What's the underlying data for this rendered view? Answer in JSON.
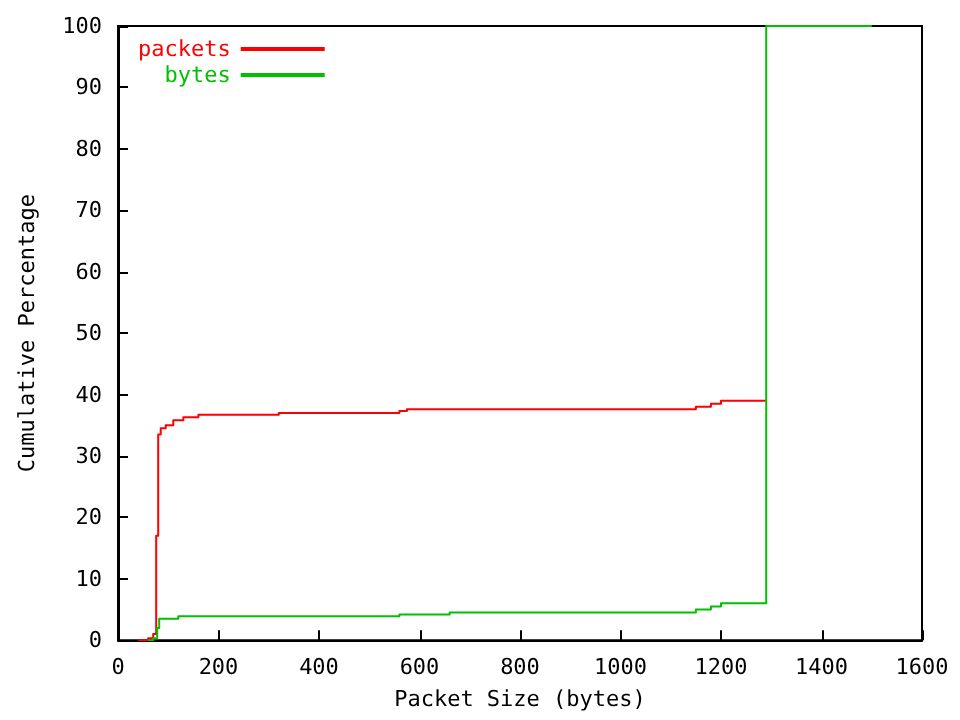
{
  "chart_data": {
    "type": "step",
    "xlabel": "Packet Size (bytes)",
    "ylabel": "Cumulative Percentage",
    "xlim": [
      0,
      1600
    ],
    "xticks": [
      0,
      200,
      400,
      600,
      800,
      1000,
      1200,
      1400,
      1600
    ],
    "ylim": [
      0,
      100
    ],
    "yticks": [
      0,
      10,
      20,
      30,
      40,
      50,
      60,
      70,
      80,
      90,
      100
    ],
    "grid": false,
    "legend": "top left",
    "marker": "none",
    "line_style": "solid",
    "series": [
      {
        "name": "packets",
        "color": "#ff0000",
        "x": [
          40,
          60,
          70,
          76,
          80,
          85,
          95,
          110,
          130,
          160,
          320,
          560,
          575,
          1150,
          1180,
          1200,
          1290
        ],
        "values": [
          0,
          0.3,
          1,
          17,
          33.5,
          34.5,
          35,
          35.8,
          36.3,
          36.7,
          37,
          37.3,
          37.6,
          38,
          38.5,
          39,
          39
        ]
      },
      {
        "name": "bytes",
        "color": "#00c000",
        "x": [
          60,
          70,
          78,
          82,
          120,
          560,
          660,
          1150,
          1180,
          1200,
          1290,
          1500
        ],
        "values": [
          0,
          0.3,
          2,
          3.5,
          3.9,
          4.2,
          4.5,
          5,
          5.5,
          6,
          100,
          100
        ]
      }
    ]
  }
}
